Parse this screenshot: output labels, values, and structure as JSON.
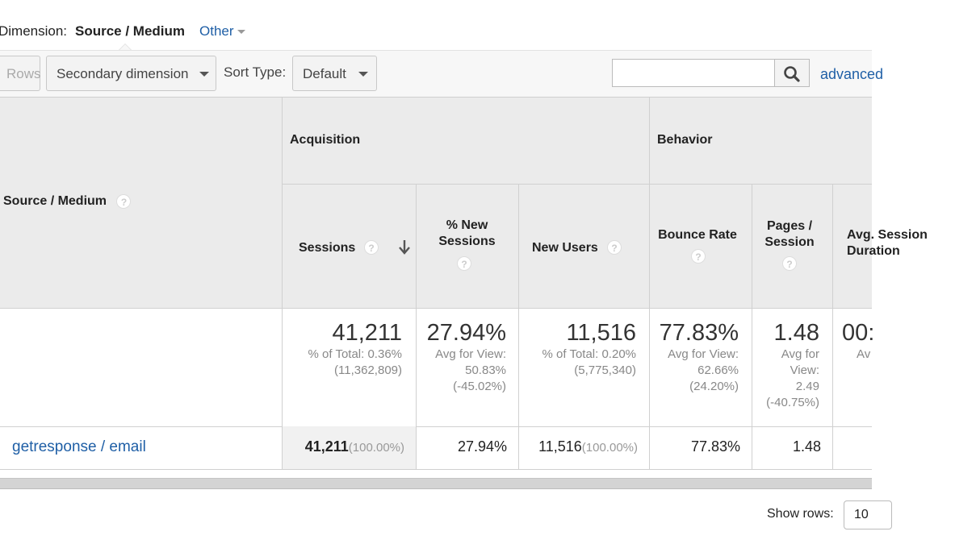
{
  "dimension_bar": {
    "label": "Dimension:",
    "active": "Source / Medium",
    "other": "Other"
  },
  "toolbar": {
    "rows_label": "Rows",
    "secondary_dimension": "Secondary dimension",
    "sort_type_label": "Sort Type:",
    "sort_type_value": "Default",
    "search_value": "",
    "advanced_label": "advanced"
  },
  "table": {
    "dimension_header": "Source / Medium",
    "groups": {
      "acquisition": "Acquisition",
      "behavior": "Behavior"
    },
    "columns": {
      "sessions": "Sessions",
      "new_sessions_pct": "% New Sessions",
      "new_users": "New Users",
      "bounce_rate": "Bounce Rate",
      "pages_session": "Pages / Session",
      "avg_duration": "Avg. Session Duration"
    },
    "totals": {
      "sessions": "41,211",
      "sessions_sub1": "% of Total: 0.36%",
      "sessions_sub2": "(11,362,809)",
      "new_sessions_pct": "27.94%",
      "new_sessions_sub1": "Avg for View:",
      "new_sessions_sub2": "50.83%",
      "new_sessions_sub3": "(-45.02%)",
      "new_users": "11,516",
      "new_users_sub1": "% of Total: 0.20%",
      "new_users_sub2": "(5,775,340)",
      "bounce_rate": "77.83%",
      "bounce_sub1": "Avg for View:",
      "bounce_sub2": "62.66%",
      "bounce_sub3": "(24.20%)",
      "pages_session": "1.48",
      "pages_sub1": "Avg for",
      "pages_sub2": "View:",
      "pages_sub3": "2.49",
      "pages_sub4": "(-40.75%)",
      "avg_duration": "00:",
      "avg_duration_sub": "Av"
    },
    "rows": [
      {
        "source_medium": "getresponse / email",
        "sessions": "41,211",
        "sessions_pct": "(100.00%)",
        "new_sessions_pct": "27.94%",
        "new_users": "11,516",
        "new_users_pct": "(100.00%)",
        "bounce_rate": "77.83%",
        "pages_session": "1.48"
      }
    ]
  },
  "footer": {
    "show_rows_label": "Show rows:",
    "show_rows_value": "10"
  },
  "colors": {
    "link": "#1f5fa6",
    "header_bg": "#ebebeb",
    "toolbar_bg": "#f7f7f7"
  }
}
